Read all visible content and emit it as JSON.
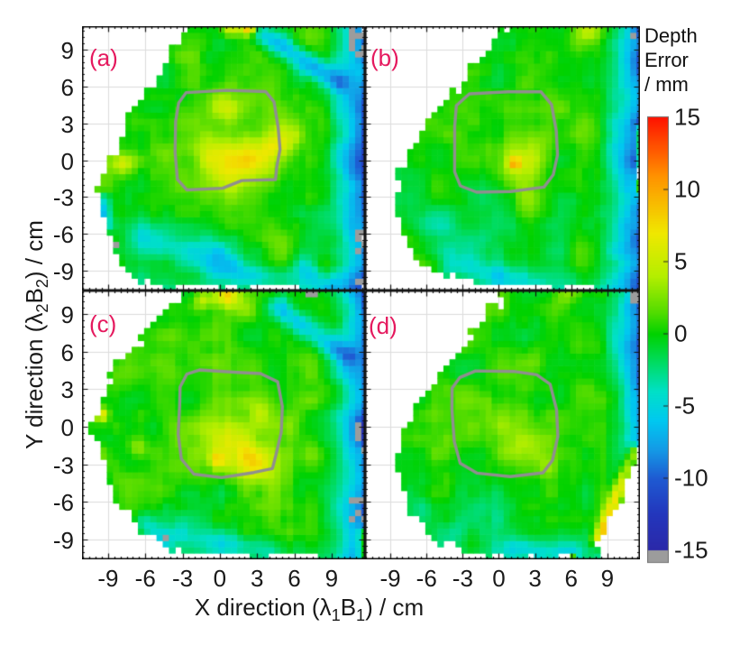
{
  "chart_data": {
    "type": "heatmap",
    "title": "",
    "value_units": "mm",
    "colors": {
      "panel_label": "#e5195e",
      "grid": "#dcdcdc",
      "axis": "#111111",
      "contour": "#8f8f8f",
      "nodata_gray": "#9c9c9c",
      "background": "#ffffff"
    },
    "axes": {
      "x_label": "X direction (λ1B1) / cm",
      "y_label": "Y direction (λ2B2) / cm",
      "x_label_segments": [
        {
          "t": "X direction (λ"
        },
        {
          "t": "1",
          "sub": true
        },
        {
          "t": "B"
        },
        {
          "t": "1",
          "sub": true
        },
        {
          "t": ") / cm"
        }
      ],
      "y_label_segments": [
        {
          "t": "Y direction (λ"
        },
        {
          "t": "2",
          "sub": true
        },
        {
          "t": "B"
        },
        {
          "t": "2",
          "sub": true
        },
        {
          "t": ") / cm"
        }
      ],
      "x_ticks": [
        -9,
        -6,
        -3,
        0,
        3,
        6,
        9
      ],
      "y_ticks": [
        9,
        6,
        3,
        0,
        -3,
        -6,
        -9
      ],
      "xlim": [
        -11.1,
        11.7
      ],
      "ylim": [
        -10.6,
        10.9
      ],
      "minor_step": 0.5,
      "grid": true
    },
    "colorbar": {
      "title_lines": [
        "Depth",
        "Error",
        "/ mm"
      ],
      "ticks": [
        15,
        10,
        5,
        0,
        -5,
        -10,
        -15
      ],
      "min": -15,
      "max": 15,
      "colormap_stops": [
        [
          -15,
          "#2b28a8"
        ],
        [
          -12.5,
          "#2336bc"
        ],
        [
          -10,
          "#1e5ad2"
        ],
        [
          -8,
          "#149ae6"
        ],
        [
          -6,
          "#00c8f0"
        ],
        [
          -4,
          "#00e0c8"
        ],
        [
          -2,
          "#00dc64"
        ],
        [
          0,
          "#00d200"
        ],
        [
          1.5,
          "#52dc00"
        ],
        [
          4,
          "#b4ee00"
        ],
        [
          7,
          "#f0e800"
        ],
        [
          11,
          "#ff9100"
        ],
        [
          15,
          "#fe1200"
        ]
      ]
    },
    "cell_size_cm": 0.5,
    "panels": [
      {
        "label": "(a)",
        "seed": 11,
        "edge": {
          "start": 7.8,
          "dip": 10.5
        },
        "boundary": [
          [
            -2.6,
            11.2
          ],
          [
            12,
            11.2
          ],
          [
            12,
            -11
          ],
          [
            7.8,
            -11
          ],
          [
            6.2,
            -9.9
          ],
          [
            2,
            -10.3
          ],
          [
            -1.5,
            -10.0
          ],
          [
            -4.5,
            -10.3
          ],
          [
            -6.8,
            -9.6
          ],
          [
            -8.0,
            -8.2
          ],
          [
            -8.8,
            -6.0
          ],
          [
            -9.5,
            -4.0
          ],
          [
            -9.6,
            -1.5
          ],
          [
            -8.3,
            1.0
          ],
          [
            -7.4,
            3.2
          ],
          [
            -6.3,
            5.0
          ],
          [
            -5.2,
            6.7
          ],
          [
            -3.9,
            8.8
          ]
        ],
        "contour": [
          [
            -3.5,
            3.2
          ],
          [
            -3.4,
            4.6
          ],
          [
            -2.7,
            5.5
          ],
          [
            0.5,
            5.7
          ],
          [
            3.6,
            5.6
          ],
          [
            4.4,
            4.7
          ],
          [
            4.7,
            2.6
          ],
          [
            4.9,
            0.8
          ],
          [
            4.6,
            -0.6
          ],
          [
            4.5,
            -1.6
          ],
          [
            1.8,
            -1.7
          ],
          [
            0.3,
            -2.3
          ],
          [
            -2.7,
            -2.4
          ],
          [
            -3.4,
            -1.6
          ],
          [
            -3.6,
            0.6
          ]
        ],
        "bumps": [
          [
            0.8,
            1.2,
            1.8,
            3.5
          ],
          [
            1.3,
            -0.6,
            4.6,
            1.5
          ],
          [
            3.7,
            0.8,
            4.0,
            1.1
          ],
          [
            5.3,
            1.8,
            3.4,
            0.9
          ],
          [
            0.2,
            4.2,
            2.6,
            1.0
          ],
          [
            -0.6,
            0.6,
            2.8,
            1.0
          ],
          [
            -7.9,
            -0.3,
            3.8,
            0.6
          ],
          [
            2.4,
            10.8,
            11,
            0.45
          ],
          [
            0.9,
            10.9,
            6,
            0.5
          ],
          [
            -4.4,
            0.3,
            2.4,
            0.7
          ],
          [
            -2,
            -7,
            -1.8,
            2.5
          ]
        ],
        "streaks": [
          [
            3.0,
            10.6,
            9.6,
            6.4,
            -6.5,
            0.9
          ],
          [
            -6,
            -6.2,
            0.5,
            -8.2,
            -3.6,
            1.3
          ],
          [
            0,
            -8.8,
            6.5,
            -9.6,
            -3.0,
            1.0
          ],
          [
            -9.3,
            -3.2,
            -9.3,
            -5.2,
            -6,
            0.6
          ],
          [
            6.8,
            -8.6,
            8.6,
            -10.2,
            -4,
            0.9
          ]
        ],
        "gray_patches": [
          [
            10.6,
            8.6,
            12,
            11.2,
            0.5
          ],
          [
            10.8,
            -7.4,
            12,
            -4.6,
            0.45
          ],
          [
            10.9,
            -9.9,
            12,
            -8.9,
            0.4
          ],
          [
            -8.9,
            -7.0,
            -8.3,
            -6.4,
            0.7
          ],
          [
            -7.9,
            -9.5,
            -7.3,
            -8.9,
            0.7
          ]
        ]
      },
      {
        "label": "(b)",
        "seed": 23,
        "edge": {
          "start": 7.6,
          "dip": 9.5
        },
        "boundary": [
          [
            1.0,
            11.2
          ],
          [
            12,
            11.2
          ],
          [
            12,
            -11
          ],
          [
            8.4,
            -11
          ],
          [
            6.0,
            -10.0
          ],
          [
            1.5,
            -10.4
          ],
          [
            -2.0,
            -10.0
          ],
          [
            -4.8,
            -9.6
          ],
          [
            -6.8,
            -8.0
          ],
          [
            -7.9,
            -6.2
          ],
          [
            -8.6,
            -4.0
          ],
          [
            -8.3,
            -1.5
          ],
          [
            -7.4,
            0.8
          ],
          [
            -6.2,
            2.6
          ],
          [
            -4.4,
            4.8
          ],
          [
            -2.2,
            7.2
          ],
          [
            -0.5,
            9.2
          ]
        ],
        "contour": [
          [
            -3.7,
            2.8
          ],
          [
            -3.5,
            4.4
          ],
          [
            -2.5,
            5.4
          ],
          [
            0.8,
            5.6
          ],
          [
            3.5,
            5.5
          ],
          [
            4.4,
            4.5
          ],
          [
            4.8,
            2.4
          ],
          [
            4.9,
            0.4
          ],
          [
            4.5,
            -1.2
          ],
          [
            3.8,
            -2.2
          ],
          [
            1.0,
            -2.5
          ],
          [
            -1.8,
            -2.6
          ],
          [
            -3.1,
            -2.2
          ],
          [
            -3.6,
            -0.8
          ]
        ],
        "bumps": [
          [
            0.6,
            0.8,
            1.4,
            3.5
          ],
          [
            1.4,
            -0.4,
            3.0,
            1.3
          ],
          [
            1.3,
            -0.2,
            6.0,
            0.35
          ],
          [
            3.2,
            1.6,
            2.2,
            1.0
          ],
          [
            7.5,
            10.6,
            3.5,
            0.8
          ],
          [
            2.2,
            -3.2,
            1.8,
            0.8
          ],
          [
            -2,
            -6,
            -2.2,
            3.0
          ]
        ],
        "streaks": [
          [
            -4,
            -8.6,
            3,
            -9.8,
            -2.8,
            1.0
          ],
          [
            -6,
            -5,
            -3,
            -7.5,
            -2.0,
            1.4
          ],
          [
            11.6,
            2.5,
            11.6,
            -2.5,
            9,
            0.3
          ]
        ],
        "gray_patches": [
          [
            10.9,
            9.4,
            12,
            11.2,
            0.45
          ]
        ]
      },
      {
        "label": "(c)",
        "seed": 37,
        "edge": {
          "start": 7.8,
          "dip": 10.5
        },
        "boundary": [
          [
            -2.2,
            11.2
          ],
          [
            12,
            11.2
          ],
          [
            12,
            -11
          ],
          [
            9.4,
            -11
          ],
          [
            6.8,
            -9.8
          ],
          [
            3,
            -10.5
          ],
          [
            -0.5,
            -10.2
          ],
          [
            -4.0,
            -9.8
          ],
          [
            -6.4,
            -8.4
          ],
          [
            -7.7,
            -6.6
          ],
          [
            -8.9,
            -4.4
          ],
          [
            -9.7,
            -1.8
          ],
          [
            -10.3,
            0.3
          ],
          [
            -9.5,
            2.2
          ],
          [
            -8.7,
            4.0
          ],
          [
            -7.2,
            6.2
          ],
          [
            -5.4,
            8.3
          ],
          [
            -3.8,
            9.8
          ]
        ],
        "contour": [
          [
            -3.2,
            1.6
          ],
          [
            -3.1,
            3.2
          ],
          [
            -2.7,
            4.2
          ],
          [
            -1.6,
            4.6
          ],
          [
            1.4,
            4.4
          ],
          [
            3.3,
            4.3
          ],
          [
            4.7,
            3.6
          ],
          [
            5.1,
            1.6
          ],
          [
            4.9,
            -0.4
          ],
          [
            4.5,
            -2.2
          ],
          [
            4.2,
            -3.4
          ],
          [
            2.7,
            -3.7
          ],
          [
            0.2,
            -4.0
          ],
          [
            -2.1,
            -3.7
          ],
          [
            -3.0,
            -2.7
          ],
          [
            -3.3,
            -0.6
          ]
        ],
        "bumps": [
          [
            0.6,
            -0.6,
            1.8,
            3.5
          ],
          [
            0.8,
            -1.6,
            4.4,
            1.5
          ],
          [
            2.9,
            -3.0,
            4.4,
            1.0
          ],
          [
            3.6,
            1.2,
            3.2,
            1.0
          ],
          [
            5.6,
            0.0,
            3.2,
            0.8
          ],
          [
            0.6,
            10.6,
            8,
            0.7
          ],
          [
            -1.4,
            10.2,
            5,
            0.6
          ],
          [
            2.2,
            9.4,
            3.2,
            0.9
          ],
          [
            -9.5,
            1.0,
            6.0,
            0.4
          ],
          [
            -6.6,
            -1.6,
            3.0,
            0.5
          ],
          [
            -0.2,
            -2.6,
            5.0,
            0.5
          ],
          [
            -1,
            -7.5,
            -1.5,
            2.5
          ]
        ],
        "streaks": [
          [
            4.6,
            9.6,
            10.2,
            5.6,
            -5.5,
            0.9
          ],
          [
            -3,
            -8.6,
            4,
            -9.8,
            -2.8,
            1.0
          ],
          [
            -6.2,
            -7.6,
            -4.6,
            -8.8,
            -3.2,
            0.8
          ],
          [
            11.6,
            -8.5,
            11.6,
            -10.5,
            9,
            0.4
          ]
        ],
        "gray_patches": [
          [
            5.8,
            10.4,
            9.6,
            11.2,
            0.5
          ],
          [
            10.9,
            -2.2,
            12,
            1.0,
            0.5
          ],
          [
            10.6,
            -8.2,
            12,
            -5.6,
            0.4
          ],
          [
            -4.6,
            -9.3,
            -3.4,
            -8.7,
            0.6
          ]
        ]
      },
      {
        "label": "(d)",
        "seed": 51,
        "edge": {
          "start": 8.2,
          "dip": 8.5
        },
        "boundary": [
          [
            0.6,
            11.2
          ],
          [
            12,
            11.2
          ],
          [
            12,
            -1.0
          ],
          [
            11.2,
            -3.2
          ],
          [
            9.8,
            -6.0
          ],
          [
            8.6,
            -8.6
          ],
          [
            7.8,
            -10.7
          ],
          [
            5.4,
            -10.3
          ],
          [
            0.5,
            -10.5
          ],
          [
            -3.0,
            -9.9
          ],
          [
            -5.3,
            -9.0
          ],
          [
            -6.9,
            -7.4
          ],
          [
            -8.0,
            -5.2
          ],
          [
            -8.5,
            -2.8
          ],
          [
            -8.0,
            -0.5
          ],
          [
            -6.9,
            1.6
          ],
          [
            -5.3,
            3.8
          ],
          [
            -3.4,
            6.0
          ],
          [
            -1.5,
            8.4
          ]
        ],
        "contour": [
          [
            -3.9,
            1.4
          ],
          [
            -3.8,
            3.0
          ],
          [
            -3.2,
            4.0
          ],
          [
            -1.9,
            4.5
          ],
          [
            1.2,
            4.4
          ],
          [
            3.2,
            4.2
          ],
          [
            4.3,
            3.4
          ],
          [
            4.8,
            1.4
          ],
          [
            4.9,
            -0.8
          ],
          [
            4.4,
            -2.6
          ],
          [
            3.6,
            -3.6
          ],
          [
            1.0,
            -3.9
          ],
          [
            -1.8,
            -3.7
          ],
          [
            -3.1,
            -3.0
          ],
          [
            -3.6,
            -1.2
          ]
        ],
        "bumps": [
          [
            0.6,
            0.2,
            1.4,
            3.5
          ],
          [
            1.8,
            -1.4,
            3.0,
            1.3
          ],
          [
            0.2,
            0.8,
            2.2,
            1.0
          ],
          [
            3.8,
            -3.2,
            2.4,
            0.7
          ],
          [
            11.2,
            -5.3,
            14,
            0.3
          ],
          [
            10.4,
            -7.6,
            10,
            0.25
          ],
          [
            6.0,
            10.8,
            2.5,
            0.7
          ],
          [
            -1,
            -6,
            -1.6,
            3.0
          ]
        ],
        "streaks": [
          [
            11.3,
            -2.0,
            8.3,
            -9.0,
            8.5,
            0.6
          ],
          [
            0,
            -9.6,
            6,
            -10,
            -2.2,
            0.8
          ],
          [
            -6.5,
            -6.5,
            -4,
            -8.2,
            -1.8,
            1.0
          ]
        ],
        "gray_patches": [
          [
            10.9,
            9.8,
            12,
            11.2,
            0.35
          ]
        ]
      }
    ]
  }
}
